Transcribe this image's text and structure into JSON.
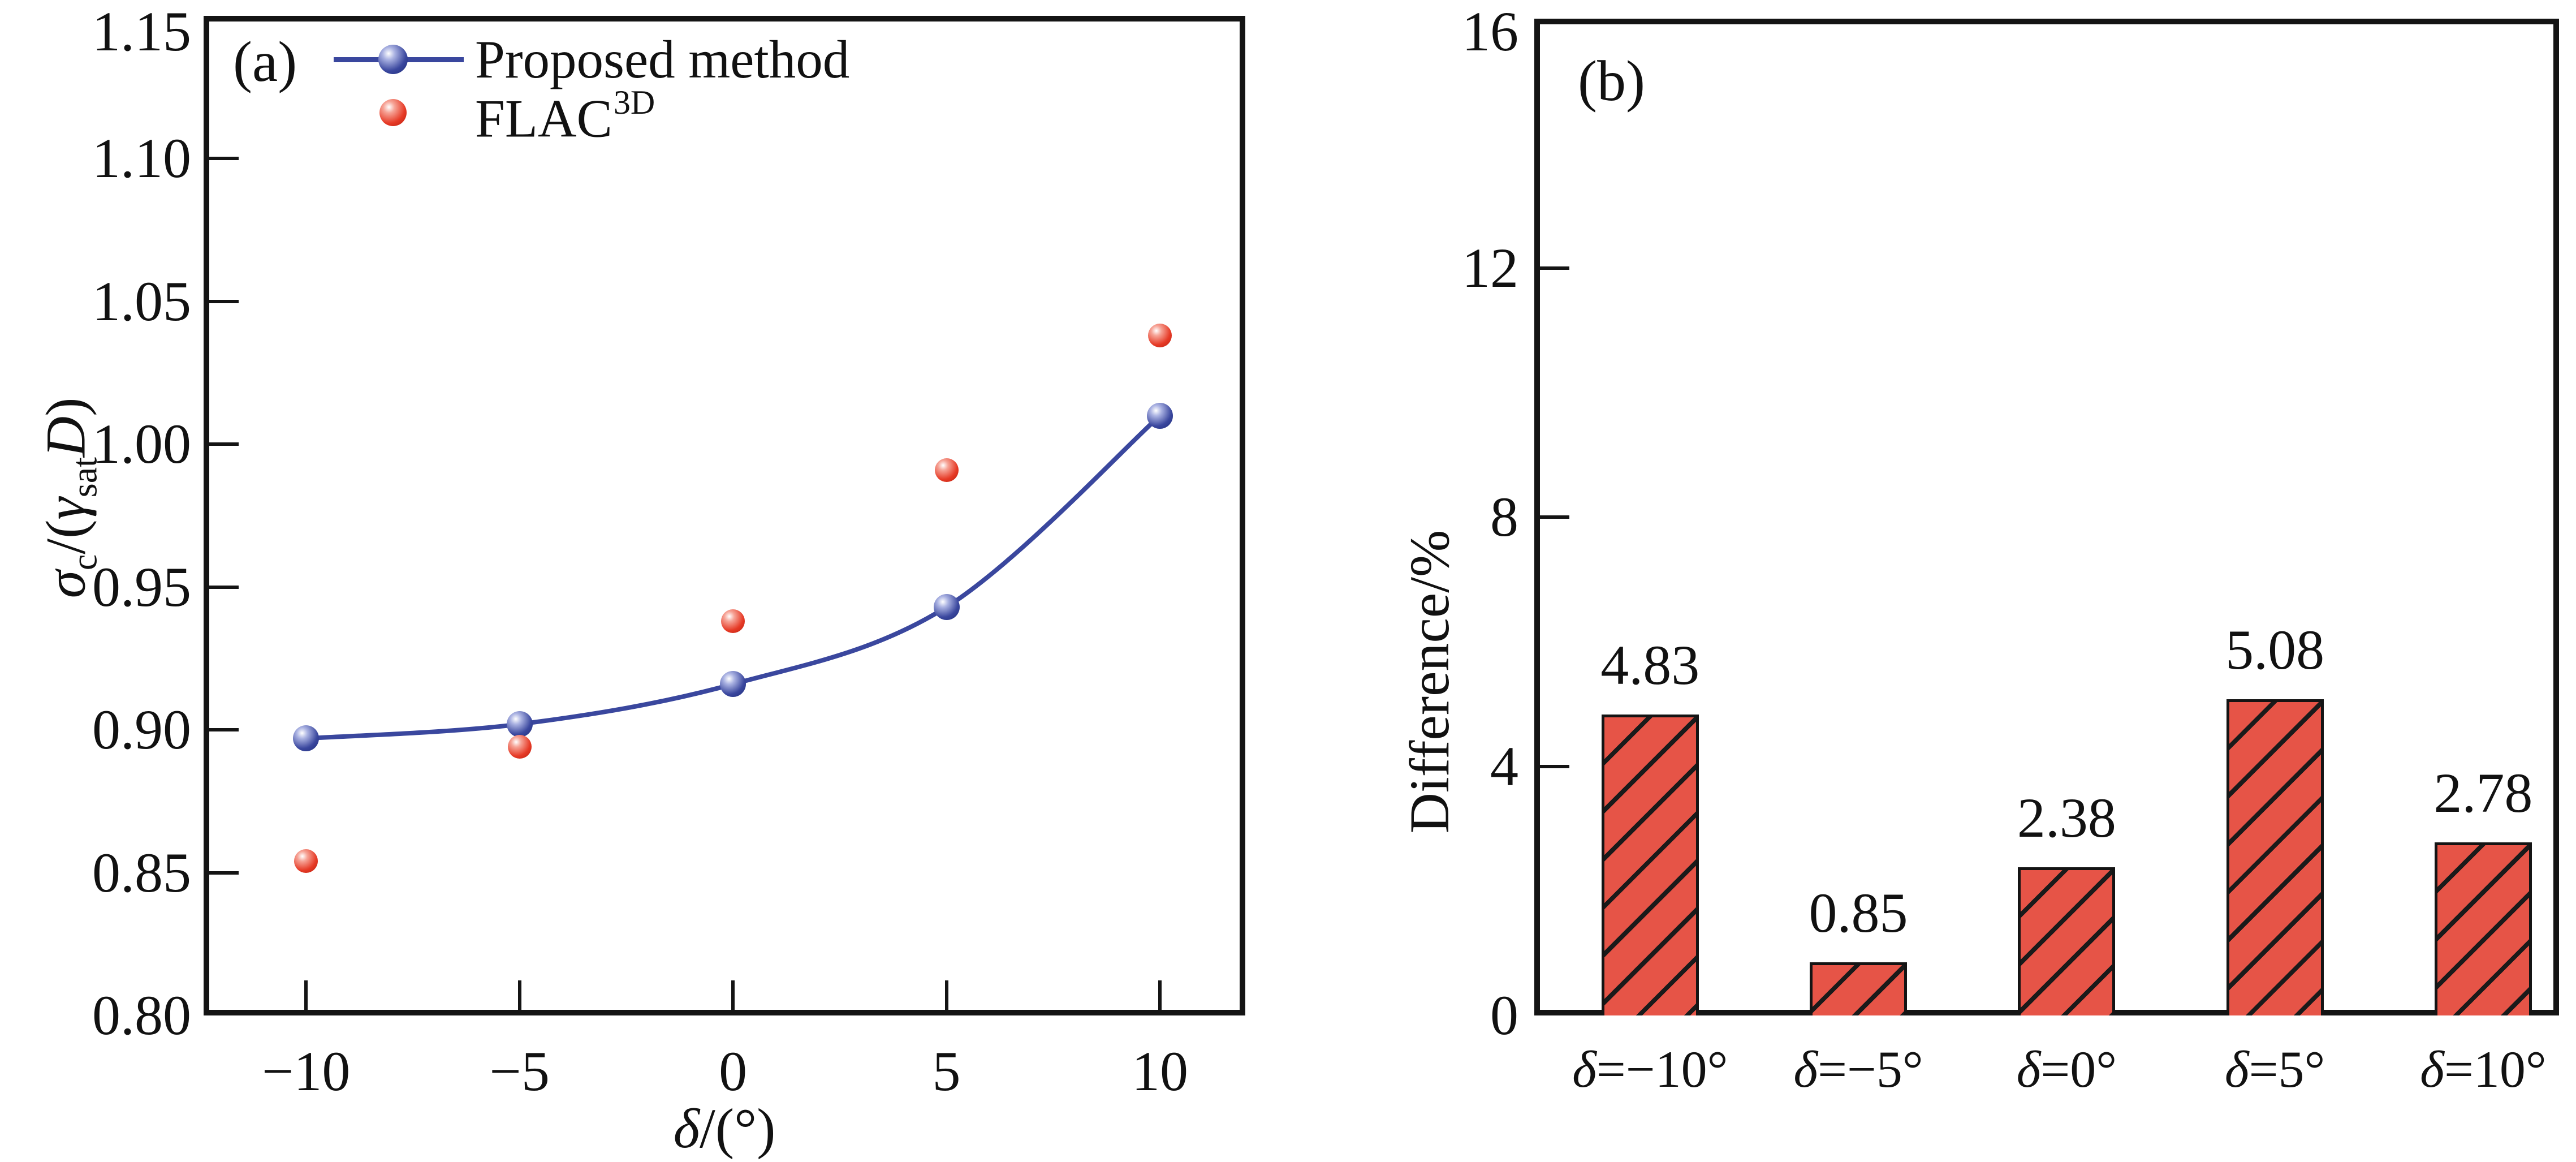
{
  "panel_a": {
    "label": "(a)",
    "ylabel_parts": {
      "sigma": "σ",
      "sigma_sub": "c",
      "open": "/(",
      "gamma": "γ",
      "gamma_sub": "sat",
      "D": "D",
      "close": ")"
    },
    "xlabel_delta": "δ",
    "xlabel_rest": "/(°)",
    "ytick_labels": [
      "1.15",
      "1.10",
      "1.05",
      "1.00",
      "0.95",
      "0.90",
      "0.85",
      "0.80"
    ],
    "ytick_values": [
      1.15,
      1.1,
      1.05,
      1.0,
      0.95,
      0.9,
      0.85,
      0.8
    ],
    "xtick_labels": [
      "−10",
      "−5",
      "0",
      "5",
      "10"
    ],
    "legend": [
      {
        "label": "Proposed method",
        "color": "#3a479e",
        "marker": "line-ball"
      },
      {
        "label": "FLAC",
        "label_sup": "3D",
        "color": "#e63a26",
        "marker": "ball"
      }
    ]
  },
  "panel_b": {
    "label": "(b)",
    "ylabel": "Difference/%",
    "ytick_labels": [
      "16",
      "12",
      "8",
      "4",
      "0"
    ],
    "ytick_values": [
      16,
      12,
      8,
      4,
      0
    ]
  },
  "chart_data": [
    {
      "type": "line",
      "title": "",
      "xlabel": "δ/(°)",
      "ylabel": "σc/(γsatD)",
      "x": [
        -10,
        -5,
        0,
        5,
        10
      ],
      "xticks": [
        -10,
        -5,
        0,
        5,
        10
      ],
      "yticks": [
        0.8,
        0.85,
        0.9,
        0.95,
        1.0,
        1.05,
        1.1,
        1.15
      ],
      "xlim": [
        -12.4,
        12.0
      ],
      "ylim": [
        0.8,
        1.15
      ],
      "grid": false,
      "legend_position": "top-left",
      "series": [
        {
          "name": "Proposed method",
          "style": "smooth-line-with-markers",
          "color": "#3a479e",
          "values": [
            0.897,
            0.902,
            0.916,
            0.943,
            1.01
          ]
        },
        {
          "name": "FLAC3D",
          "style": "markers-only",
          "color": "#e63a26",
          "values": [
            0.854,
            0.894,
            0.938,
            0.991,
            1.038
          ]
        }
      ]
    },
    {
      "type": "bar",
      "title": "",
      "xlabel": "",
      "ylabel": "Difference/%",
      "categories": [
        "δ=−10°",
        "δ=−5°",
        "δ=0°",
        "δ=5°",
        "δ=10°"
      ],
      "values": [
        4.83,
        0.85,
        2.38,
        5.08,
        2.78
      ],
      "data_labels": [
        "4.83",
        "0.85",
        "2.38",
        "5.08",
        "2.78"
      ],
      "yticks": [
        0,
        4,
        8,
        12,
        16
      ],
      "ylim": [
        0,
        16
      ],
      "grid": false,
      "bar_color": "#e65447",
      "bar_hatch": "diagonal-forward",
      "bar_edge_color": "#141414"
    }
  ]
}
